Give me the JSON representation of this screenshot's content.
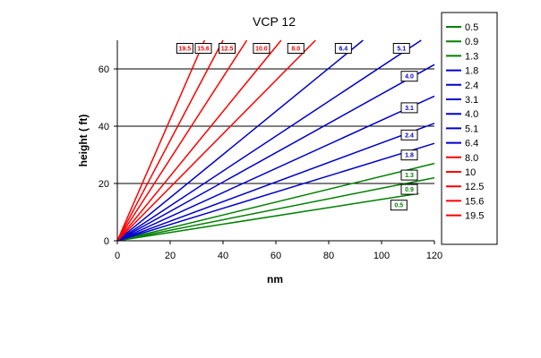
{
  "chart_data": {
    "type": "line",
    "title": "VCP 12",
    "xlabel": "nm",
    "ylabel": "height ( ft)",
    "xlim": [
      0,
      120
    ],
    "ylim": [
      0,
      70
    ],
    "xticks": [
      0,
      20,
      40,
      60,
      80,
      100,
      120
    ],
    "yticks": [
      0,
      20,
      40,
      60
    ],
    "grid": "horizontal",
    "legend_position": "right",
    "series": [
      {
        "name": "0.5",
        "color": "#008000",
        "label": "0.5",
        "x": [
          0,
          114
        ],
        "y": [
          0,
          16.5
        ]
      },
      {
        "name": "0.9",
        "color": "#008000",
        "label": "0.9",
        "x": [
          0,
          120
        ],
        "y": [
          0,
          22
        ]
      },
      {
        "name": "1.3",
        "color": "#008000",
        "label": "1.3",
        "x": [
          0,
          120
        ],
        "y": [
          0,
          27
        ]
      },
      {
        "name": "1.8",
        "color": "#0000cc",
        "label": "1.8",
        "x": [
          0,
          120
        ],
        "y": [
          0,
          34
        ]
      },
      {
        "name": "2.4",
        "color": "#0000cc",
        "label": "2.4",
        "x": [
          0,
          120
        ],
        "y": [
          0,
          41
        ]
      },
      {
        "name": "3.1",
        "color": "#0000cc",
        "label": "3.1",
        "x": [
          0,
          120
        ],
        "y": [
          0,
          50.5
        ]
      },
      {
        "name": "4.0",
        "color": "#0000cc",
        "label": "4.0",
        "x": [
          0,
          120
        ],
        "y": [
          0,
          61.5
        ]
      },
      {
        "name": "5.1",
        "color": "#0000cc",
        "label": "5.1",
        "x": [
          0,
          115
        ],
        "y": [
          0,
          70
        ]
      },
      {
        "name": "6.4",
        "color": "#0000cc",
        "label": "6.4",
        "x": [
          0,
          93
        ],
        "y": [
          0,
          70
        ]
      },
      {
        "name": "8.0",
        "color": "#ff0000",
        "label": "8.0",
        "x": [
          0,
          75
        ],
        "y": [
          0,
          70
        ]
      },
      {
        "name": "10",
        "color": "#ff0000",
        "label": "10.0",
        "x": [
          0,
          62
        ],
        "y": [
          0,
          70
        ]
      },
      {
        "name": "12.5",
        "color": "#ff0000",
        "label": "12.5",
        "x": [
          0,
          49
        ],
        "y": [
          0,
          70
        ]
      },
      {
        "name": "15.6",
        "color": "#ff0000",
        "label": "15.6",
        "x": [
          0,
          40
        ],
        "y": [
          0,
          70
        ]
      },
      {
        "name": "19.5",
        "color": "#ff0000",
        "label": "19.5",
        "x": [
          0,
          33
        ],
        "y": [
          0,
          70
        ]
      }
    ]
  }
}
